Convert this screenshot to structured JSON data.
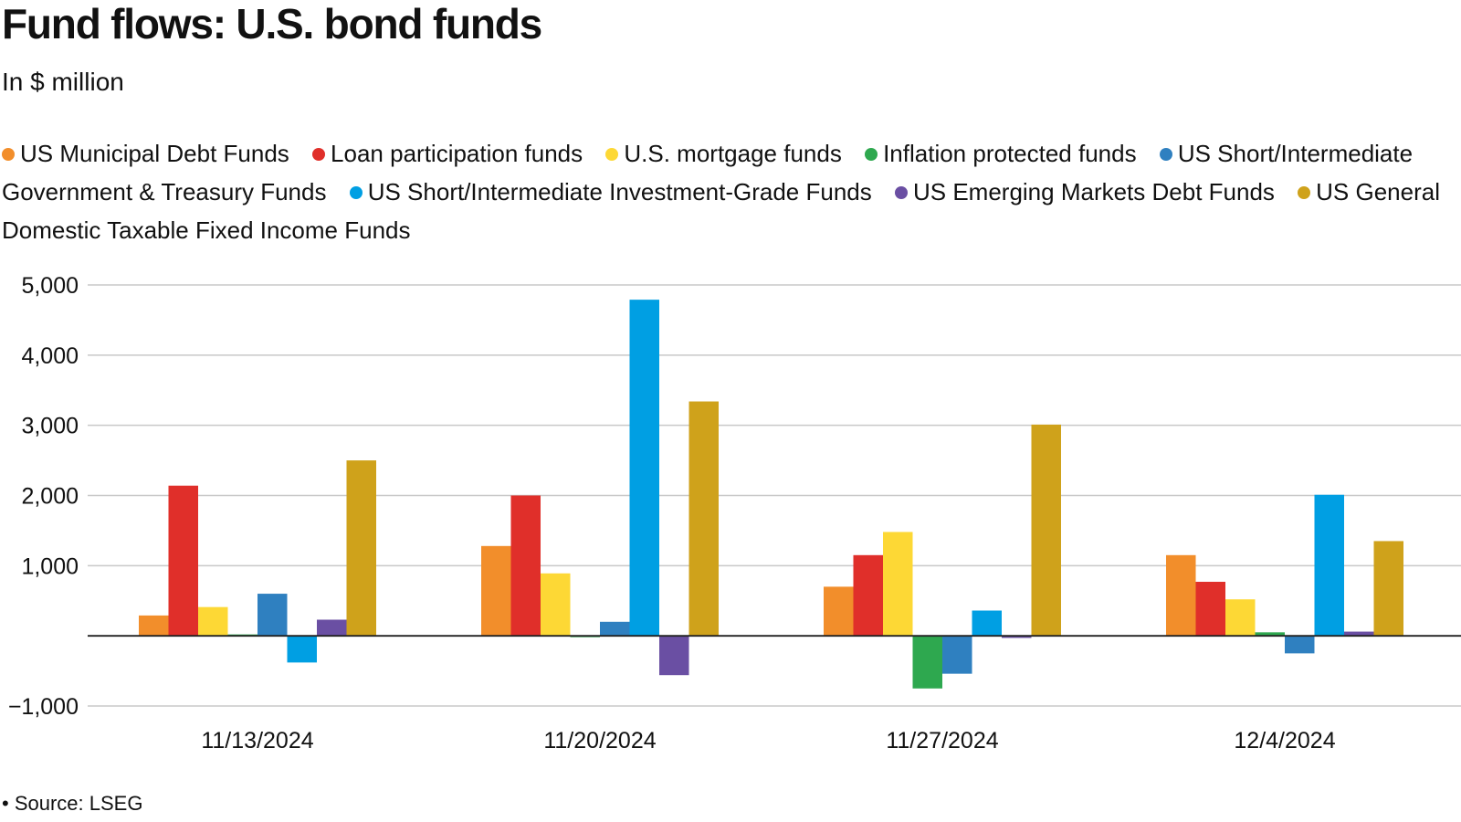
{
  "header": {
    "title": "Fund flows: U.S. bond funds",
    "subtitle": "In $ million"
  },
  "footer": {
    "source": "Source: LSEG"
  },
  "chart_data": {
    "type": "bar",
    "title": "Fund flows: U.S. bond funds",
    "subtitle": "In $ million",
    "xlabel": "",
    "ylabel": "",
    "categories": [
      "11/13/2024",
      "11/20/2024",
      "11/27/2024",
      "12/4/2024"
    ],
    "ylim": [
      -1000,
      5000
    ],
    "yticks": [
      -1000,
      1000,
      2000,
      3000,
      4000,
      5000
    ],
    "ytick_labels": [
      "−1,000",
      "1,000",
      "2,000",
      "3,000",
      "4,000",
      "5,000"
    ],
    "grid": true,
    "legend_position": "top",
    "series": [
      {
        "name": "US Municipal Debt Funds",
        "color": "#f28e2b",
        "values": [
          290,
          1280,
          700,
          1150
        ]
      },
      {
        "name": "Loan participation funds",
        "color": "#e02f2a",
        "values": [
          2140,
          2000,
          1150,
          770
        ]
      },
      {
        "name": "U.S. mortgage funds",
        "color": "#fdd835",
        "values": [
          410,
          890,
          1480,
          520
        ]
      },
      {
        "name": "Inflation protected funds",
        "color": "#2ea84f",
        "values": [
          20,
          0,
          -750,
          50
        ]
      },
      {
        "name": "US Short/Intermediate Government & Treasury Funds",
        "color": "#2f80c0",
        "values": [
          600,
          200,
          -540,
          -250
        ]
      },
      {
        "name": "US Short/Intermediate Investment-Grade Funds",
        "color": "#009fe3",
        "values": [
          -380,
          4790,
          360,
          2010
        ]
      },
      {
        "name": "US Emerging Markets Debt Funds",
        "color": "#6a4fa3",
        "values": [
          230,
          -560,
          -30,
          60
        ]
      },
      {
        "name": "US General Domestic Taxable Fixed Income Funds",
        "color": "#cfa21b",
        "values": [
          2500,
          3340,
          3010,
          1350
        ]
      }
    ]
  }
}
